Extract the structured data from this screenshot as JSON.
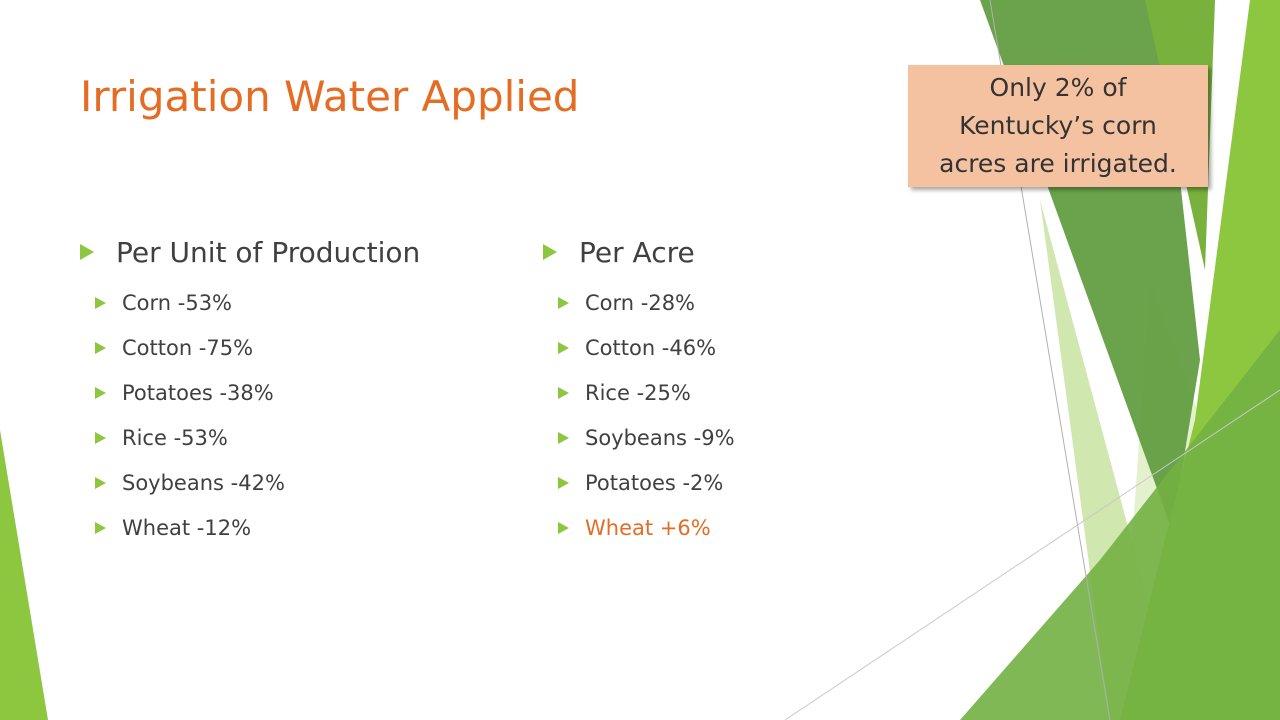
{
  "slide": {
    "title": "Irrigation Water Applied",
    "callout": {
      "lines": [
        "Only 2% of",
        "Kentucky’s corn",
        "acres are irrigated."
      ]
    },
    "left_column": {
      "heading": "Per Unit of Production",
      "items": [
        "Corn  -53%",
        "Cotton  -75%",
        "Potatoes  -38%",
        "Rice  -53%",
        "Soybeans  -42%",
        "Wheat  -12%"
      ]
    },
    "right_column": {
      "heading": "Per Acre",
      "items": [
        "Corn  -28%",
        "Cotton  -46%",
        "Rice  -25%",
        "Soybeans  -9%",
        "Potatoes  -2%",
        "Wheat  +6%"
      ]
    }
  },
  "colors": {
    "title": "#E46C23",
    "highlight": "#E46C23",
    "bullet": "#8DC63F",
    "callout_fill": "#F5C2A1",
    "body_text": "#404040"
  }
}
